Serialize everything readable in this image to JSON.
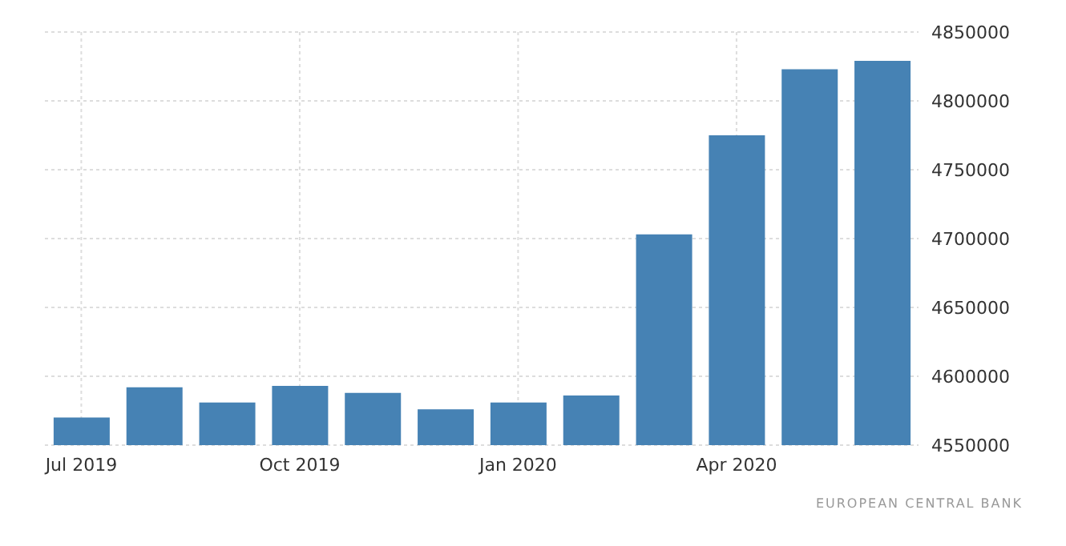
{
  "chart_data": {
    "type": "bar",
    "categories": [
      "Jul 2019",
      null,
      null,
      "Oct 2019",
      null,
      null,
      "Jan 2020",
      null,
      null,
      "Apr 2020",
      null,
      null
    ],
    "values": [
      4570000,
      4592000,
      4581000,
      4593000,
      4588000,
      4576000,
      4581000,
      4586000,
      4703000,
      4775000,
      4823000,
      4829000
    ],
    "color": "#4682b4",
    "ylim": [
      4550000,
      4850000
    ],
    "yticks": [
      4550000,
      4600000,
      4650000,
      4700000,
      4750000,
      4800000,
      4850000
    ],
    "grid": true,
    "annotations": [
      "EUROPEAN CENTRAL BANK"
    ]
  }
}
